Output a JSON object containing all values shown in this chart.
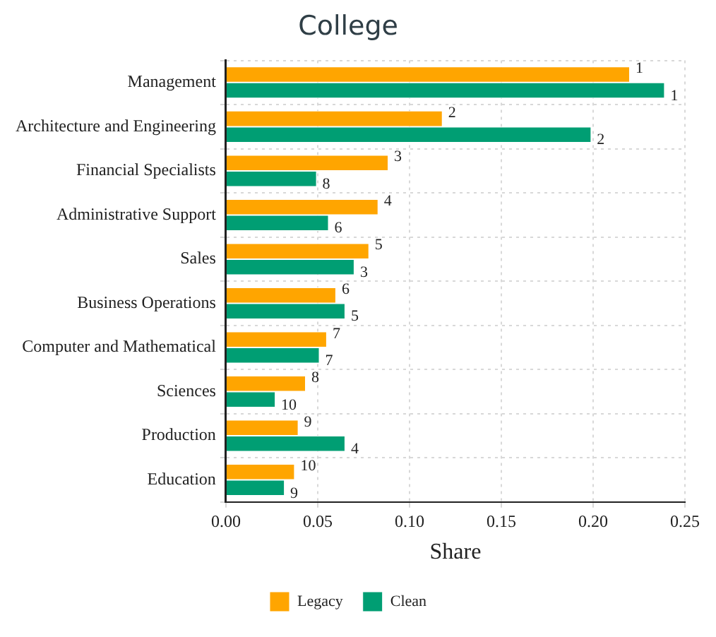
{
  "chart_data": {
    "type": "bar",
    "orientation": "horizontal",
    "title": "College",
    "xlabel": "Share",
    "categories": [
      "Management",
      "Architecture and Engineering",
      "Financial Specialists",
      "Administrative Support",
      "Sales",
      "Business Operations",
      "Computer and Mathematical",
      "Sciences",
      "Production",
      "Education"
    ],
    "series": [
      {
        "name": "Legacy",
        "color": "#ffa500",
        "values": [
          0.22,
          0.118,
          0.0885,
          0.083,
          0.078,
          0.06,
          0.055,
          0.0435,
          0.0395,
          0.0375
        ]
      },
      {
        "name": "Clean",
        "color": "#009e73",
        "values": [
          0.239,
          0.199,
          0.0495,
          0.056,
          0.07,
          0.065,
          0.051,
          0.027,
          0.065,
          0.032
        ]
      }
    ],
    "annotations": [
      {
        "text": "1",
        "x": 0.22,
        "y": "Management"
      },
      {
        "text": "2",
        "x": 0.118,
        "y": "Architecture and Engineering"
      },
      {
        "text": "3",
        "x": 0.0885,
        "y": "Financial Specialists"
      },
      {
        "text": "4",
        "x": 0.083,
        "y": "Administrative Support"
      },
      {
        "text": "5",
        "x": 0.078,
        "y": "Sales"
      },
      {
        "text": "6",
        "x": 0.06,
        "y": "Business Operations"
      },
      {
        "text": "7",
        "x": 0.055,
        "y": "Computer and Mathematical"
      },
      {
        "text": "8",
        "x": 0.0435,
        "y": "Sciences"
      },
      {
        "text": "9",
        "x": 0.0395,
        "y": "Production"
      },
      {
        "text": "10",
        "x": 0.0375,
        "y": "Education"
      },
      {
        "text": "1",
        "x": 0.239,
        "y": "Management"
      },
      {
        "text": "2",
        "x": 0.199,
        "y": "Architecture and Engineering"
      },
      {
        "text": "8",
        "x": 0.0495,
        "y": "Financial Specialists"
      },
      {
        "text": "6",
        "x": 0.056,
        "y": "Administrative Support"
      },
      {
        "text": "3",
        "x": 0.07,
        "y": "Sales"
      },
      {
        "text": "5",
        "x": 0.065,
        "y": "Business Operations"
      },
      {
        "text": "7",
        "x": 0.051,
        "y": "Computer and Mathematical"
      },
      {
        "text": "10",
        "x": 0.027,
        "y": "Sciences"
      },
      {
        "text": "4",
        "x": 0.065,
        "y": "Production"
      },
      {
        "text": "9",
        "x": 0.032,
        "y": "Education"
      }
    ],
    "xlim": [
      0,
      0.25
    ],
    "xticks": [
      {
        "value": 0,
        "label": "0.00"
      },
      {
        "value": 0.05,
        "label": "0.05"
      },
      {
        "value": 0.1,
        "label": "0.10"
      },
      {
        "value": 0.15,
        "label": "0.15"
      },
      {
        "value": 0.2,
        "label": "0.20"
      },
      {
        "value": 0.25,
        "label": "0.25"
      }
    ],
    "grid": true,
    "legend": "bottom"
  }
}
